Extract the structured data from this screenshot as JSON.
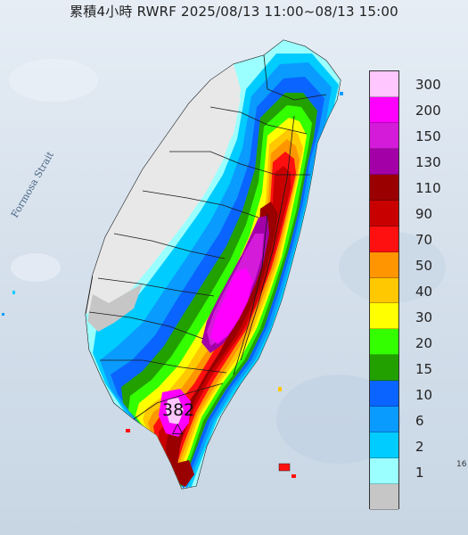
{
  "title": "累積4小時 RWRF 2025/08/13 11:00~08/13 15:00",
  "strait_label": "Formosa Strait",
  "max_value": "382",
  "max_marker": "△",
  "corner_label": "16",
  "legend": [
    {
      "label": "300",
      "color": "#ffc6ff"
    },
    {
      "label": "200",
      "color": "#ff00ff"
    },
    {
      "label": "150",
      "color": "#d31bd9"
    },
    {
      "label": "130",
      "color": "#a300a8"
    },
    {
      "label": "110",
      "color": "#9a0000"
    },
    {
      "label": "90",
      "color": "#c80000"
    },
    {
      "label": "70",
      "color": "#ff1010"
    },
    {
      "label": "50",
      "color": "#ff9500"
    },
    {
      "label": "40",
      "color": "#ffc800"
    },
    {
      "label": "30",
      "color": "#ffff00"
    },
    {
      "label": "20",
      "color": "#33ff00"
    },
    {
      "label": "15",
      "color": "#22a000"
    },
    {
      "label": "10",
      "color": "#0a64ff"
    },
    {
      "label": "6",
      "color": "#0a9bff"
    },
    {
      "label": "2",
      "color": "#00ccff"
    },
    {
      "label": "1",
      "color": "#9bffff"
    },
    {
      "label": "",
      "color": "#c6c6c6"
    }
  ]
}
